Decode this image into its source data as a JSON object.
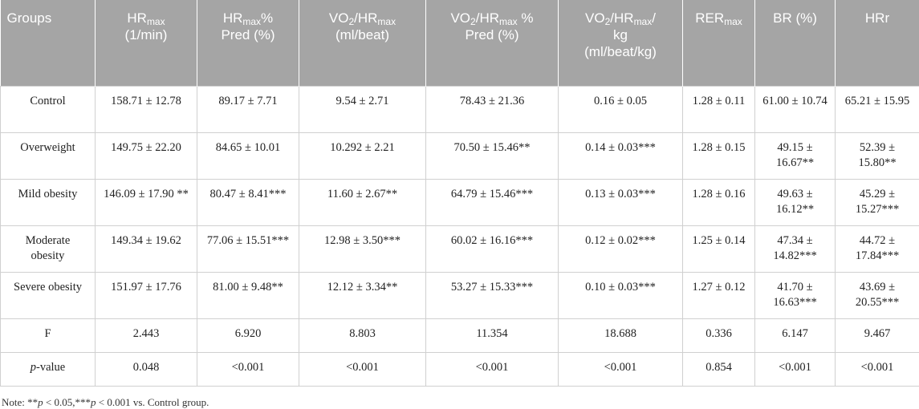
{
  "table": {
    "header": [
      [
        [
          "Groups"
        ]
      ],
      [
        [
          "HR",
          {
            "sub": "max"
          }
        ],
        [
          "(1/min)"
        ]
      ],
      [
        [
          "HR",
          {
            "sub": "max"
          },
          "%"
        ],
        [
          "Pred (%)"
        ]
      ],
      [
        [
          "VO",
          {
            "sub": "2"
          },
          "/HR",
          {
            "sub": "max"
          }
        ],
        [
          "(ml/beat)"
        ]
      ],
      [
        [
          "VO",
          {
            "sub": "2"
          },
          "/HR",
          {
            "sub": "max"
          },
          " %"
        ],
        [
          "Pred (%)"
        ]
      ],
      [
        [
          "VO",
          {
            "sub": "2"
          },
          "/HR",
          {
            "sub": "max"
          },
          "/"
        ],
        [
          "kg"
        ],
        [
          "(ml/beat/kg)"
        ]
      ],
      [
        [
          "RER",
          {
            "sub": "max"
          }
        ]
      ],
      [
        [
          "BR (%)"
        ]
      ],
      [
        [
          "HRr"
        ]
      ]
    ],
    "rows": [
      [
        [
          "Control"
        ],
        [
          "158.71 ± 12.78"
        ],
        [
          "89.17 ± 7.71"
        ],
        [
          "9.54 ± 2.71"
        ],
        [
          "78.43 ± 21.36"
        ],
        [
          "0.16 ± 0.05"
        ],
        [
          "1.28 ± 0.11"
        ],
        [
          "61.00 ± 10.74"
        ],
        [
          "65.21 ± 15.95"
        ]
      ],
      [
        [
          "Overweight"
        ],
        [
          "149.75 ± 22.20"
        ],
        [
          "84.65 ± 10.01"
        ],
        [
          "10.292 ± 2.21"
        ],
        [
          "70.50 ± 15.46**"
        ],
        [
          "0.14 ± 0.03***"
        ],
        [
          "1.28 ± 0.15"
        ],
        [
          "49.15 ± 16.67**"
        ],
        [
          "52.39 ± 15.80**"
        ]
      ],
      [
        [
          "Mild obesity"
        ],
        [
          "146.09 ± 17.90 **"
        ],
        [
          "80.47 ± 8.41***"
        ],
        [
          "11.60 ± 2.67**"
        ],
        [
          "64.79 ± 15.46***"
        ],
        [
          "0.13 ± 0.03***"
        ],
        [
          "1.28 ± 0.16"
        ],
        [
          "49.63 ± 16.12**"
        ],
        [
          "45.29 ± 15.27***"
        ]
      ],
      [
        [
          "Moderate obesity"
        ],
        [
          "149.34 ± 19.62"
        ],
        [
          "77.06 ± 15.51***"
        ],
        [
          "12.98 ± 3.50***"
        ],
        [
          "60.02 ± 16.16***"
        ],
        [
          "0.12 ± 0.02***"
        ],
        [
          "1.25 ± 0.14"
        ],
        [
          "47.34 ± 14.82***"
        ],
        [
          "44.72 ± 17.84***"
        ]
      ],
      [
        [
          "Severe obesity"
        ],
        [
          "151.97 ± 17.76"
        ],
        [
          "81.00 ± 9.48**"
        ],
        [
          "12.12 ± 3.34**"
        ],
        [
          "53.27 ± 15.33***"
        ],
        [
          "0.10 ± 0.03***"
        ],
        [
          "1.27 ± 0.12"
        ],
        [
          "41.70 ± 16.63***"
        ],
        [
          "43.69 ± 20.55***"
        ]
      ],
      [
        [
          "F"
        ],
        [
          "2.443"
        ],
        [
          "6.920"
        ],
        [
          "8.803"
        ],
        [
          "11.354"
        ],
        [
          "18.688"
        ],
        [
          "0.336"
        ],
        [
          "6.147"
        ],
        [
          "9.467"
        ]
      ],
      [
        [
          {
            "i": "p"
          },
          "-value"
        ],
        [
          "0.048"
        ],
        [
          "<0.001"
        ],
        [
          "<0.001"
        ],
        [
          "<0.001"
        ],
        [
          "<0.001"
        ],
        [
          "0.854"
        ],
        [
          "<0.001"
        ],
        [
          "<0.001"
        ]
      ]
    ]
  },
  "note": [
    "Note: **",
    {
      "i": "p"
    },
    " < 0.05,***",
    {
      "i": "p"
    },
    " < 0.001 vs. Control group."
  ]
}
